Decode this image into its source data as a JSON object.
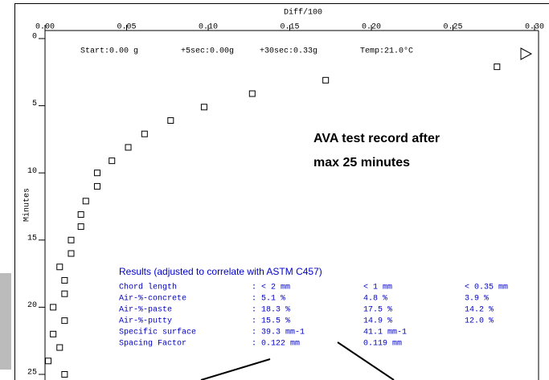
{
  "chart_data": {
    "type": "scatter",
    "x_label": "Diff/100",
    "y_label": "Minutes",
    "header": [
      "Start:0.00 g",
      "+5sec:0.00g",
      "+30sec:0.33g",
      "Temp:21.0°C"
    ],
    "annotation": [
      "AVA test record after",
      "max 25 minutes"
    ],
    "x": [
      0.277,
      0.172,
      0.127,
      0.0975,
      0.077,
      0.061,
      0.051,
      0.041,
      0.032,
      0.032,
      0.025,
      0.022,
      0.022,
      0.016,
      0.016,
      0.009,
      0.012,
      0.012,
      0.005,
      0.012,
      0.005,
      0.009,
      0.002,
      0.012
    ],
    "values": [
      2.1,
      3.1,
      4.1,
      5.1,
      6.1,
      7.1,
      8.1,
      9.1,
      10.0,
      11.0,
      12.1,
      13.1,
      14.0,
      15.0,
      16.0,
      17.0,
      18.0,
      19.0,
      20.0,
      21.0,
      22.0,
      23.0,
      24.0,
      25.0
    ],
    "xlim": [
      0,
      0.3
    ],
    "ylim": [
      0,
      25
    ],
    "y_reversed": true,
    "xticks": [
      {
        "value": 0,
        "label": "0.00"
      },
      {
        "value": 0.05,
        "label": "0.05"
      },
      {
        "value": 0.1,
        "label": "0.10"
      },
      {
        "value": 0.15,
        "label": "0.15"
      },
      {
        "value": 0.2,
        "label": "0.20"
      },
      {
        "value": 0.25,
        "label": "0.25"
      },
      {
        "value": 0.3,
        "label": "0.30"
      }
    ],
    "yticks": [
      0,
      5,
      10,
      15,
      20,
      25
    ],
    "marker_color": "#000000",
    "results": {
      "title": "Results (adjusted to correlate with ASTM C457)",
      "rows": [
        [
          "Chord length",
          ": < 2 mm",
          "< 1 mm",
          "< 0.35 mm"
        ],
        [
          "Air-%-concrete",
          ": 5.1 %",
          "4.8 %",
          "3.9 %"
        ],
        [
          "Air-%-paste",
          ": 18.3 %",
          "17.5 %",
          "14.2 %"
        ],
        [
          "Air-%-putty",
          ": 15.5 %",
          "14.9 %",
          "12.0 %"
        ],
        [
          "Specific surface",
          ": 39.3 mm-1",
          "41.1 mm-1"
        ],
        [
          "Spacing Factor",
          ": 0.122 mm",
          "0.119 mm"
        ]
      ]
    }
  }
}
